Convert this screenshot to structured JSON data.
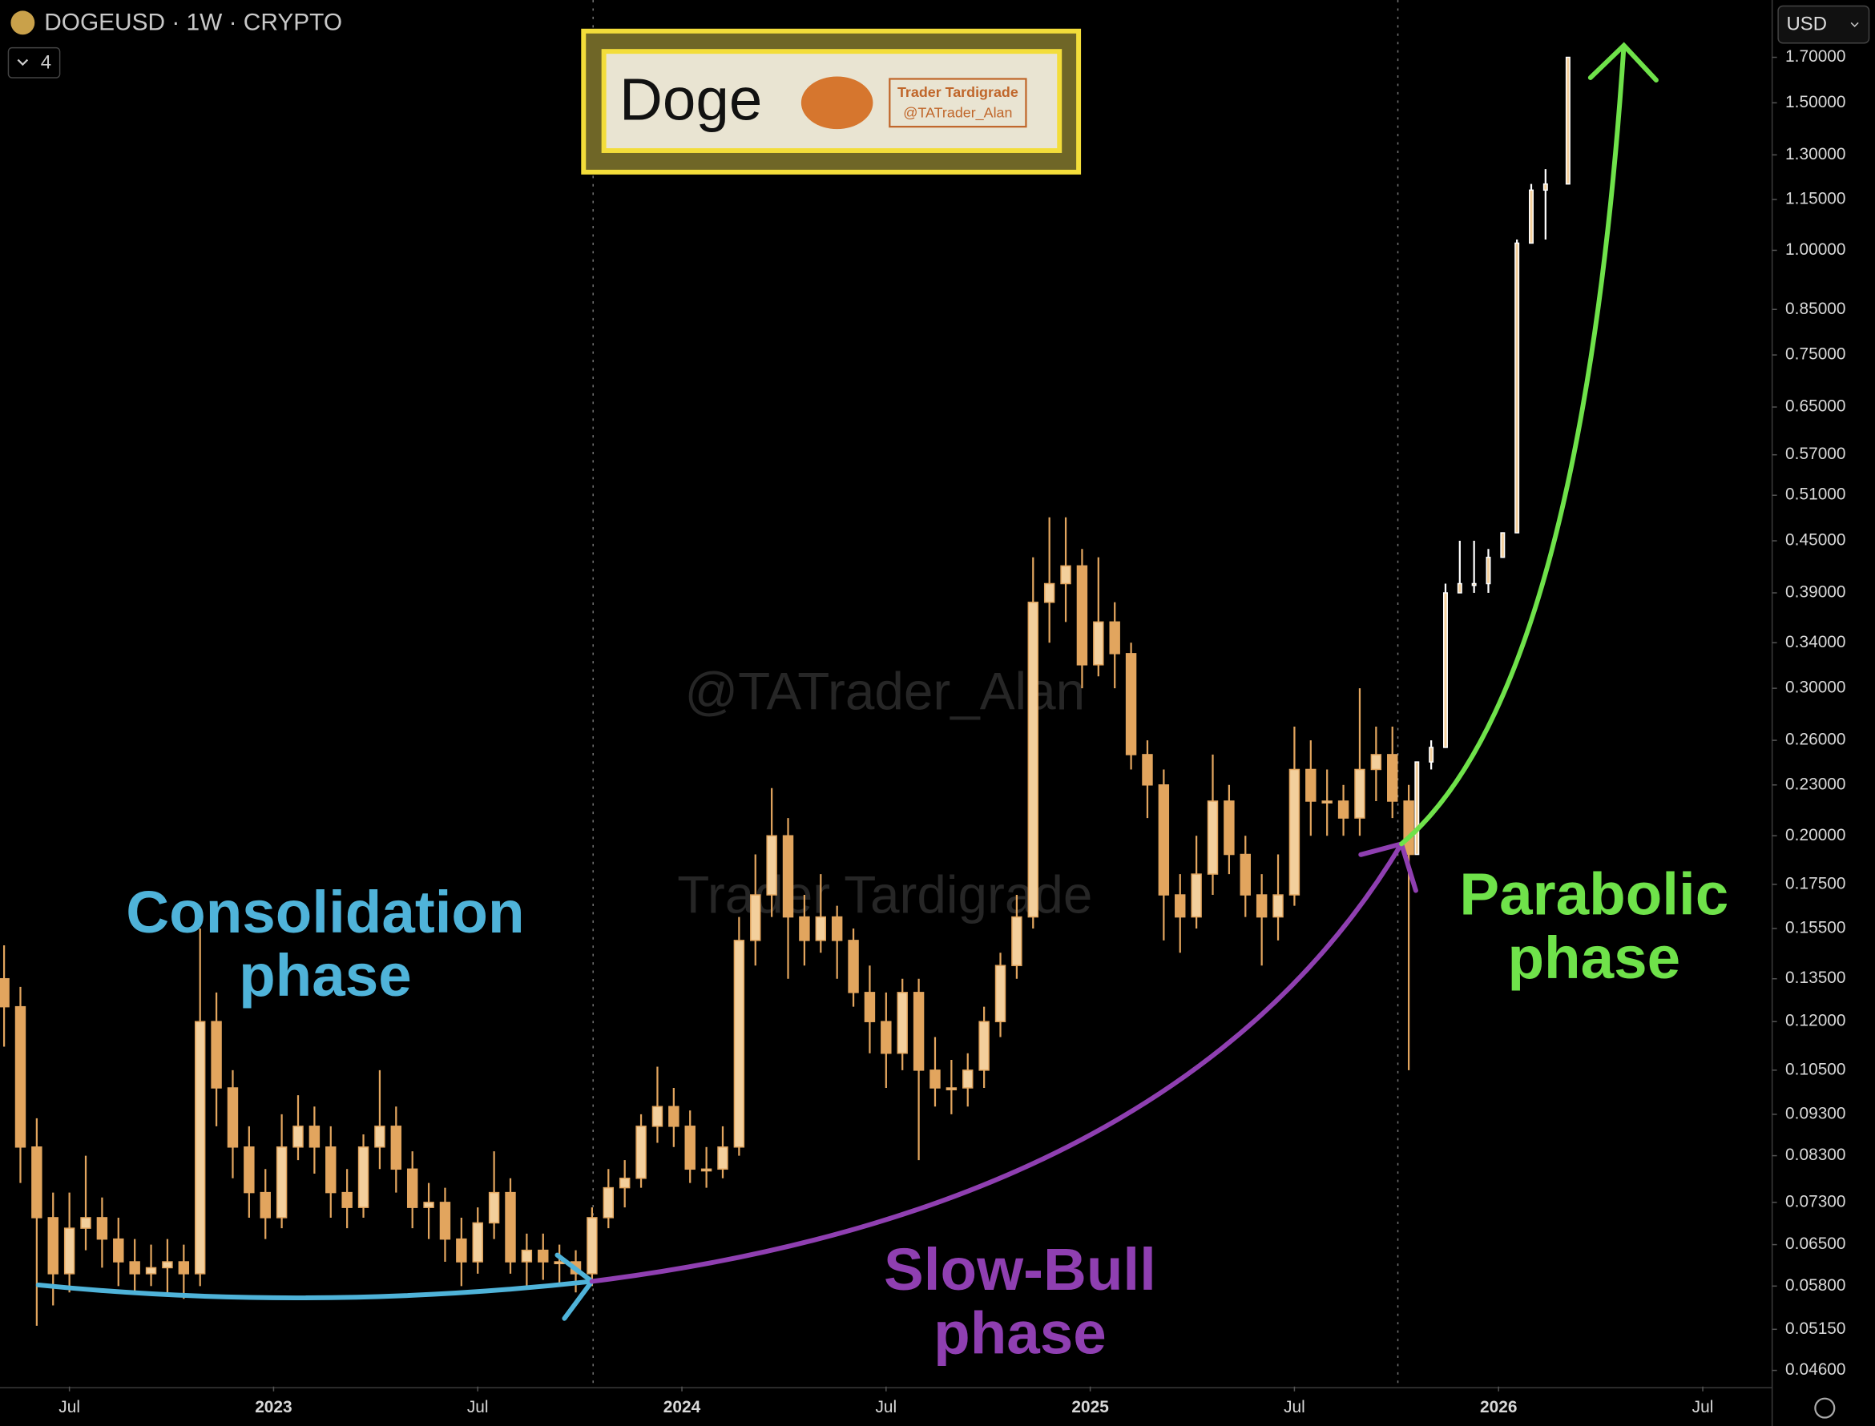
{
  "header": {
    "symbol": "DOGEUSD · 1W · CRYPTO",
    "indicator_count": 4,
    "currency": "USD"
  },
  "logo": {
    "title": "Doge",
    "author": "Trader Tardigrade",
    "handle": "@TATrader_Alan"
  },
  "watermarks": [
    "@TATrader_Alan",
    "Trader Tardigrade"
  ],
  "chart_data": {
    "type": "candlestick",
    "log_scale": true,
    "grid": false,
    "xlim": [
      2022.33,
      2026.67
    ],
    "ylim": [
      0.044,
      1.99
    ],
    "xticks": [
      {
        "value": 2022.5,
        "label": "Jul"
      },
      2023,
      {
        "value": 2023.5,
        "label": "Jul"
      },
      2024,
      {
        "value": 2024.5,
        "label": "Jul"
      },
      2025,
      {
        "value": 2025.5,
        "label": "Jul"
      },
      2026,
      {
        "value": 2026.5,
        "label": "Jul"
      }
    ],
    "yticks": [
      {
        "value": 1.7,
        "label": "1.70000"
      },
      {
        "value": 1.5,
        "label": "1.50000"
      },
      {
        "value": 1.3,
        "label": "1.30000"
      },
      {
        "value": 1.15,
        "label": "1.15000"
      },
      {
        "value": 1.0,
        "label": "1.00000"
      },
      {
        "value": 0.85,
        "label": "0.85000"
      },
      {
        "value": 0.75,
        "label": "0.75000"
      },
      {
        "value": 0.65,
        "label": "0.65000"
      },
      {
        "value": 0.57,
        "label": "0.57000"
      },
      {
        "value": 0.51,
        "label": "0.51000"
      },
      {
        "value": 0.45,
        "label": "0.45000"
      },
      {
        "value": 0.39,
        "label": "0.39000"
      },
      {
        "value": 0.34,
        "label": "0.34000"
      },
      {
        "value": 0.3,
        "label": "0.30000"
      },
      {
        "value": 0.26,
        "label": "0.26000"
      },
      {
        "value": 0.23,
        "label": "0.23000"
      },
      {
        "value": 0.2,
        "label": "0.20000"
      },
      {
        "value": 0.175,
        "label": "0.17500"
      },
      {
        "value": 0.155,
        "label": "0.15500"
      },
      {
        "value": 0.135,
        "label": "0.13500"
      },
      {
        "value": 0.12,
        "label": "0.12000"
      },
      {
        "value": 0.105,
        "label": "0.10500"
      },
      {
        "value": 0.093,
        "label": "0.09300"
      },
      {
        "value": 0.083,
        "label": "0.08300"
      },
      {
        "value": 0.073,
        "label": "0.07300"
      },
      {
        "value": 0.065,
        "label": "0.06500"
      },
      {
        "value": 0.058,
        "label": "0.05800"
      },
      {
        "value": 0.0515,
        "label": "0.05150"
      },
      {
        "value": 0.046,
        "label": "0.04600"
      }
    ],
    "series": [
      {
        "color": "#e2a55e",
        "x": [
          2022.34,
          2022.38,
          2022.42,
          2022.46,
          2022.5,
          2022.54,
          2022.58,
          2022.62,
          2022.66,
          2022.7,
          2022.74,
          2022.78,
          2022.82,
          2022.86,
          2022.9,
          2022.94,
          2022.98,
          2023.02,
          2023.06,
          2023.1,
          2023.14,
          2023.18,
          2023.22,
          2023.26,
          2023.3,
          2023.34,
          2023.38,
          2023.42,
          2023.46,
          2023.5,
          2023.54,
          2023.58,
          2023.62,
          2023.66,
          2023.7,
          2023.74,
          2023.78,
          2023.82,
          2023.86,
          2023.9,
          2023.94,
          2023.98,
          2024.02,
          2024.06,
          2024.1,
          2024.14,
          2024.18,
          2024.22,
          2024.26,
          2024.3,
          2024.34,
          2024.38,
          2024.42,
          2024.46,
          2024.5,
          2024.54,
          2024.58,
          2024.62,
          2024.66,
          2024.7,
          2024.74,
          2024.78,
          2024.82,
          2024.86,
          2024.9,
          2024.94,
          2024.98,
          2025.02,
          2025.06,
          2025.1,
          2025.14,
          2025.18,
          2025.22,
          2025.26,
          2025.3,
          2025.34,
          2025.38,
          2025.42,
          2025.46,
          2025.5,
          2025.54,
          2025.58,
          2025.62,
          2025.66,
          2025.7,
          2025.74,
          2025.78
        ],
        "values": [
          [
            0.135,
            0.148,
            0.112,
            0.125
          ],
          [
            0.125,
            0.132,
            0.077,
            0.085
          ],
          [
            0.085,
            0.092,
            0.052,
            0.07
          ],
          [
            0.07,
            0.075,
            0.055,
            0.06
          ],
          [
            0.06,
            0.075,
            0.057,
            0.068
          ],
          [
            0.068,
            0.083,
            0.064,
            0.07
          ],
          [
            0.07,
            0.074,
            0.061,
            0.066
          ],
          [
            0.066,
            0.07,
            0.058,
            0.062
          ],
          [
            0.062,
            0.066,
            0.057,
            0.06
          ],
          [
            0.06,
            0.065,
            0.058,
            0.061
          ],
          [
            0.061,
            0.066,
            0.057,
            0.062
          ],
          [
            0.062,
            0.065,
            0.056,
            0.06
          ],
          [
            0.06,
            0.155,
            0.058,
            0.12
          ],
          [
            0.12,
            0.13,
            0.09,
            0.1
          ],
          [
            0.1,
            0.105,
            0.078,
            0.085
          ],
          [
            0.085,
            0.09,
            0.07,
            0.075
          ],
          [
            0.075,
            0.08,
            0.066,
            0.07
          ],
          [
            0.07,
            0.093,
            0.068,
            0.085
          ],
          [
            0.085,
            0.098,
            0.082,
            0.09
          ],
          [
            0.09,
            0.095,
            0.079,
            0.085
          ],
          [
            0.085,
            0.09,
            0.07,
            0.075
          ],
          [
            0.075,
            0.08,
            0.068,
            0.072
          ],
          [
            0.072,
            0.088,
            0.07,
            0.085
          ],
          [
            0.085,
            0.105,
            0.08,
            0.09
          ],
          [
            0.09,
            0.095,
            0.075,
            0.08
          ],
          [
            0.08,
            0.084,
            0.068,
            0.072
          ],
          [
            0.072,
            0.077,
            0.066,
            0.073
          ],
          [
            0.073,
            0.076,
            0.062,
            0.066
          ],
          [
            0.066,
            0.07,
            0.058,
            0.062
          ],
          [
            0.062,
            0.072,
            0.06,
            0.069
          ],
          [
            0.069,
            0.084,
            0.066,
            0.075
          ],
          [
            0.075,
            0.078,
            0.06,
            0.062
          ],
          [
            0.062,
            0.067,
            0.058,
            0.064
          ],
          [
            0.064,
            0.067,
            0.059,
            0.062
          ],
          [
            0.062,
            0.065,
            0.058,
            0.062
          ],
          [
            0.062,
            0.064,
            0.057,
            0.06
          ],
          [
            0.06,
            0.072,
            0.058,
            0.07
          ],
          [
            0.07,
            0.08,
            0.068,
            0.076
          ],
          [
            0.076,
            0.082,
            0.072,
            0.078
          ],
          [
            0.078,
            0.093,
            0.076,
            0.09
          ],
          [
            0.09,
            0.106,
            0.086,
            0.095
          ],
          [
            0.095,
            0.1,
            0.085,
            0.09
          ],
          [
            0.09,
            0.094,
            0.077,
            0.08
          ],
          [
            0.08,
            0.085,
            0.076,
            0.08
          ],
          [
            0.08,
            0.09,
            0.078,
            0.085
          ],
          [
            0.085,
            0.16,
            0.083,
            0.15
          ],
          [
            0.15,
            0.19,
            0.14,
            0.17
          ],
          [
            0.17,
            0.228,
            0.16,
            0.2
          ],
          [
            0.2,
            0.21,
            0.135,
            0.16
          ],
          [
            0.16,
            0.17,
            0.14,
            0.15
          ],
          [
            0.15,
            0.18,
            0.145,
            0.16
          ],
          [
            0.16,
            0.165,
            0.135,
            0.15
          ],
          [
            0.15,
            0.155,
            0.125,
            0.13
          ],
          [
            0.13,
            0.14,
            0.11,
            0.12
          ],
          [
            0.12,
            0.13,
            0.1,
            0.11
          ],
          [
            0.11,
            0.135,
            0.105,
            0.13
          ],
          [
            0.13,
            0.135,
            0.082,
            0.105
          ],
          [
            0.105,
            0.115,
            0.095,
            0.1
          ],
          [
            0.1,
            0.108,
            0.093,
            0.1
          ],
          [
            0.1,
            0.11,
            0.095,
            0.105
          ],
          [
            0.105,
            0.125,
            0.1,
            0.12
          ],
          [
            0.12,
            0.145,
            0.115,
            0.14
          ],
          [
            0.14,
            0.17,
            0.135,
            0.16
          ],
          [
            0.16,
            0.43,
            0.155,
            0.38
          ],
          [
            0.38,
            0.48,
            0.34,
            0.4
          ],
          [
            0.4,
            0.48,
            0.36,
            0.42
          ],
          [
            0.42,
            0.44,
            0.3,
            0.32
          ],
          [
            0.32,
            0.43,
            0.31,
            0.36
          ],
          [
            0.36,
            0.38,
            0.3,
            0.33
          ],
          [
            0.33,
            0.34,
            0.24,
            0.25
          ],
          [
            0.25,
            0.26,
            0.21,
            0.23
          ],
          [
            0.23,
            0.24,
            0.15,
            0.17
          ],
          [
            0.17,
            0.18,
            0.145,
            0.16
          ],
          [
            0.16,
            0.2,
            0.155,
            0.18
          ],
          [
            0.18,
            0.25,
            0.17,
            0.22
          ],
          [
            0.22,
            0.23,
            0.18,
            0.19
          ],
          [
            0.19,
            0.2,
            0.16,
            0.17
          ],
          [
            0.17,
            0.18,
            0.14,
            0.16
          ],
          [
            0.16,
            0.19,
            0.15,
            0.17
          ],
          [
            0.17,
            0.27,
            0.165,
            0.24
          ],
          [
            0.24,
            0.26,
            0.2,
            0.22
          ],
          [
            0.22,
            0.24,
            0.2,
            0.22
          ],
          [
            0.22,
            0.23,
            0.2,
            0.21
          ],
          [
            0.21,
            0.3,
            0.2,
            0.24
          ],
          [
            0.24,
            0.27,
            0.22,
            0.25
          ],
          [
            0.25,
            0.27,
            0.21,
            0.22
          ],
          [
            0.22,
            0.23,
            0.105,
            0.19
          ]
        ]
      },
      {
        "color": "#ffffff",
        "x": [
          2025.8,
          2025.835,
          2025.87,
          2025.905,
          2025.94,
          2025.975,
          2026.01,
          2026.045,
          2026.08,
          2026.115,
          2026.17
        ],
        "values": [
          [
            0.19,
            0.245,
            0.19,
            0.245
          ],
          [
            0.245,
            0.26,
            0.24,
            0.255
          ],
          [
            0.255,
            0.4,
            0.255,
            0.39
          ],
          [
            0.39,
            0.45,
            0.39,
            0.4
          ],
          [
            0.4,
            0.45,
            0.39,
            0.4
          ],
          [
            0.4,
            0.44,
            0.39,
            0.43
          ],
          [
            0.43,
            0.46,
            0.43,
            0.46
          ],
          [
            0.46,
            1.03,
            0.46,
            1.02
          ],
          [
            1.02,
            1.2,
            1.02,
            1.18
          ],
          [
            1.18,
            1.25,
            1.03,
            1.2
          ],
          [
            1.2,
            1.7,
            1.2,
            1.7
          ]
        ]
      }
    ],
    "annotations": [
      {
        "lines": [
          "Consolidation",
          "phase"
        ],
        "color": "#4fb3d9"
      },
      {
        "lines": [
          "Slow-Bull",
          "phase"
        ],
        "color": "#8f3fb1"
      },
      {
        "lines": [
          "Parabolic",
          "phase"
        ],
        "color": "#6fe24a"
      }
    ]
  }
}
